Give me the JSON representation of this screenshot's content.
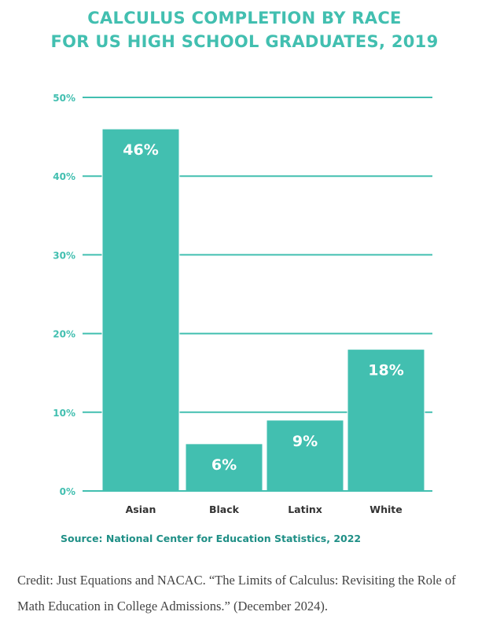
{
  "header": {
    "title_line1": "CALCULUS COMPLETION BY RACE",
    "title_line2": "FOR US HIGH SCHOOL GRADUATES, 2019"
  },
  "source": "Source: National Center for Education Statistics, 2022",
  "credit": "Credit: Just Equations and NACAC. “The Limits of Calculus: Revisiting the Role of Math Education in College Admissions.” (December 2024).",
  "colors": {
    "bar": "#42bfb0",
    "grid": "#42bfb0",
    "axis_text": "#42bfb0",
    "label_text": "#ffffff",
    "category_text": "#333333"
  },
  "chart_data": {
    "type": "bar",
    "title": "CALCULUS COMPLETION BY RACE FOR US HIGH SCHOOL GRADUATES, 2019",
    "categories": [
      "Asian",
      "Black",
      "Latinx",
      "White"
    ],
    "values": [
      46,
      6,
      9,
      18
    ],
    "data_labels": [
      "46%",
      "6%",
      "9%",
      "18%"
    ],
    "ylim": [
      0,
      50
    ],
    "yticks": [
      0,
      10,
      20,
      30,
      40,
      50
    ],
    "ytick_labels": [
      "0%",
      "10%",
      "20%",
      "30%",
      "40%",
      "50%"
    ],
    "grid": true,
    "legend": "none"
  }
}
